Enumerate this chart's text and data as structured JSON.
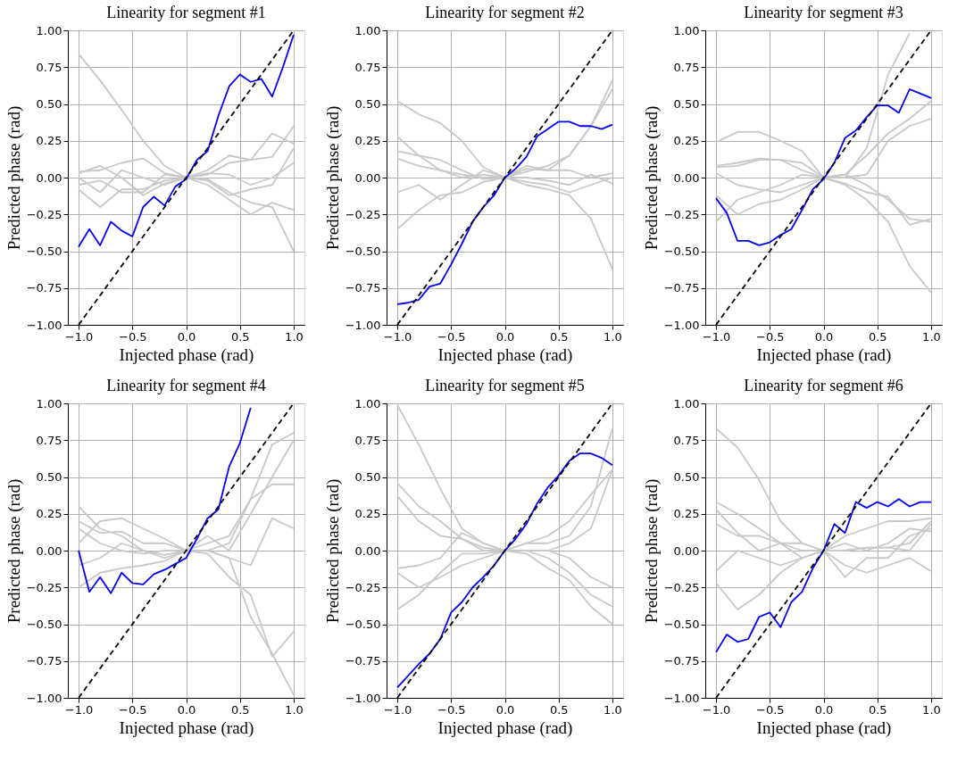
{
  "chart_data": [
    {
      "type": "line",
      "title": "Linearity for segment #1",
      "xlabel": "Injected phase (rad)",
      "ylabel": "Predicted phase (rad)",
      "grid": true,
      "xlim": [
        -1.1,
        1.1
      ],
      "ylim": [
        -1,
        1
      ],
      "xticks": [
        {
          "value": -1,
          "label": "−1.0"
        },
        {
          "value": -0.5,
          "label": "−0.5"
        },
        {
          "value": 0,
          "label": "0.0"
        },
        {
          "value": 0.5,
          "label": "0.5"
        },
        {
          "value": 1,
          "label": "1.0"
        }
      ],
      "yticks": [
        {
          "value": -1,
          "label": "−1.00"
        },
        {
          "value": -0.75,
          "label": "−0.75"
        },
        {
          "value": -0.5,
          "label": "−0.50"
        },
        {
          "value": -0.25,
          "label": "−0.25"
        },
        {
          "value": 0,
          "label": "0.00"
        },
        {
          "value": 0.25,
          "label": "0.25"
        },
        {
          "value": 0.5,
          "label": "0.50"
        },
        {
          "value": 0.75,
          "label": "0.75"
        },
        {
          "value": 1,
          "label": "1.00"
        }
      ],
      "x": [
        -1.0,
        -0.9,
        -0.8,
        -0.7,
        -0.6,
        -0.5,
        -0.4,
        -0.3,
        -0.2,
        -0.1,
        0.0,
        0.1,
        0.2,
        0.3,
        0.4,
        0.5,
        0.6,
        0.7,
        0.8,
        0.9,
        1.0
      ],
      "series": [
        {
          "color": "#c8c8c8",
          "x": [
            -1.0,
            -0.8,
            -0.6,
            -0.4,
            -0.2,
            0.0,
            0.2,
            0.4,
            0.6,
            0.8,
            1.0
          ],
          "values": [
            0.84,
            0.66,
            0.46,
            0.25,
            0.08,
            0.0,
            -0.05,
            -0.15,
            -0.25,
            -0.17,
            -0.22
          ]
        },
        {
          "color": "#c8c8c8",
          "x": [
            -1.0,
            -0.8,
            -0.6,
            -0.4,
            -0.2,
            0.0,
            0.2,
            0.4,
            0.6,
            0.8,
            1.0
          ],
          "values": [
            0.04,
            0.05,
            0.1,
            0.13,
            0.03,
            0.0,
            0.02,
            0.1,
            0.12,
            0.14,
            0.35
          ]
        },
        {
          "color": "#c8c8c8",
          "x": [
            -1.0,
            -0.8,
            -0.6,
            -0.4,
            -0.2,
            0.0,
            0.2,
            0.4,
            0.6,
            0.8,
            1.0
          ],
          "values": [
            -0.08,
            -0.2,
            -0.08,
            -0.08,
            -0.02,
            0.0,
            -0.01,
            -0.1,
            -0.17,
            -0.2,
            -0.5
          ]
        },
        {
          "color": "#c8c8c8",
          "x": [
            -1.0,
            -0.8,
            -0.6,
            -0.4,
            -0.2,
            0.0,
            0.2,
            0.4,
            0.6,
            0.8,
            1.0
          ],
          "values": [
            0.03,
            0.08,
            0.0,
            -0.12,
            -0.04,
            0.0,
            0.05,
            0.15,
            0.12,
            0.3,
            0.23
          ]
        },
        {
          "color": "#c8c8c8",
          "x": [
            -1.0,
            -0.8,
            -0.6,
            -0.4,
            -0.2,
            0.0,
            0.2,
            0.4,
            0.6,
            0.8,
            1.0
          ],
          "values": [
            -0.05,
            -0.02,
            -0.1,
            -0.1,
            0.02,
            0.0,
            0.03,
            0.02,
            -0.05,
            0.0,
            0.1
          ]
        },
        {
          "color": "#c8c8c8",
          "x": [
            -1.0,
            -0.8,
            -0.6,
            -0.4,
            -0.2,
            0.0,
            0.2,
            0.4,
            0.6,
            0.8,
            1.0
          ],
          "values": [
            0.0,
            -0.1,
            0.05,
            0.0,
            -0.05,
            0.0,
            -0.02,
            -0.12,
            -0.08,
            -0.05,
            0.2
          ]
        },
        {
          "color": "#0000ff",
          "values": [
            -0.47,
            -0.35,
            -0.46,
            -0.3,
            -0.36,
            -0.4,
            -0.2,
            -0.13,
            -0.19,
            -0.06,
            -0.01,
            0.12,
            0.18,
            0.42,
            0.62,
            0.7,
            0.65,
            0.67,
            0.55,
            0.75,
            0.97
          ]
        },
        {
          "color": "#000000",
          "line_style": "dashed",
          "x": [
            -1,
            1
          ],
          "values": [
            -1,
            1
          ]
        }
      ]
    },
    {
      "type": "line",
      "title": "Linearity for segment #2",
      "xlabel": "Injected phase (rad)",
      "ylabel": "Predicted phase (rad)",
      "grid": true,
      "xlim": [
        -1.1,
        1.1
      ],
      "ylim": [
        -1,
        1
      ],
      "xticks": [
        {
          "value": -1,
          "label": "−1.0"
        },
        {
          "value": -0.5,
          "label": "−0.5"
        },
        {
          "value": 0,
          "label": "0.0"
        },
        {
          "value": 0.5,
          "label": "0.5"
        },
        {
          "value": 1,
          "label": "1.0"
        }
      ],
      "yticks": [
        {
          "value": -1,
          "label": "−1.00"
        },
        {
          "value": -0.75,
          "label": "−0.75"
        },
        {
          "value": -0.5,
          "label": "−0.50"
        },
        {
          "value": -0.25,
          "label": "−0.25"
        },
        {
          "value": 0,
          "label": "0.00"
        },
        {
          "value": 0.25,
          "label": "0.25"
        },
        {
          "value": 0.5,
          "label": "0.50"
        },
        {
          "value": 0.75,
          "label": "0.75"
        },
        {
          "value": 1,
          "label": "1.00"
        }
      ],
      "x": [
        -1.0,
        -0.9,
        -0.8,
        -0.7,
        -0.6,
        -0.5,
        -0.4,
        -0.3,
        -0.2,
        -0.1,
        0.0,
        0.1,
        0.2,
        0.3,
        0.4,
        0.5,
        0.6,
        0.7,
        0.8,
        0.9,
        1.0
      ],
      "series": [
        {
          "color": "#c8c8c8",
          "x": [
            -1.0,
            -0.8,
            -0.6,
            -0.4,
            -0.2,
            0.0,
            0.2,
            0.4,
            0.6,
            0.8,
            1.0
          ],
          "values": [
            0.52,
            0.43,
            0.37,
            0.25,
            0.07,
            0.0,
            0.04,
            0.08,
            0.15,
            0.35,
            0.66
          ]
        },
        {
          "color": "#c8c8c8",
          "x": [
            -1.0,
            -0.8,
            -0.6,
            -0.4,
            -0.2,
            0.0,
            0.2,
            0.4,
            0.6,
            0.8,
            1.0
          ],
          "values": [
            0.28,
            0.15,
            0.05,
            0.0,
            0.02,
            0.0,
            -0.05,
            -0.08,
            -0.12,
            -0.28,
            -0.62
          ]
        },
        {
          "color": "#c8c8c8",
          "x": [
            -1.0,
            -0.8,
            -0.6,
            -0.4,
            -0.2,
            0.0,
            0.2,
            0.4,
            0.6,
            0.8,
            1.0
          ],
          "values": [
            0.18,
            0.15,
            0.12,
            0.05,
            -0.01,
            0.0,
            0.0,
            -0.02,
            -0.05,
            0.02,
            -0.04
          ]
        },
        {
          "color": "#c8c8c8",
          "x": [
            -1.0,
            -0.8,
            -0.6,
            -0.4,
            -0.2,
            0.0,
            0.2,
            0.4,
            0.6,
            0.8,
            1.0
          ],
          "values": [
            0.13,
            0.08,
            0.05,
            0.02,
            0.0,
            0.0,
            0.06,
            0.05,
            0.05,
            0.0,
            0.03
          ]
        },
        {
          "color": "#c8c8c8",
          "x": [
            -1.0,
            -0.8,
            -0.6,
            -0.4,
            -0.2,
            0.0,
            0.2,
            0.4,
            0.6,
            0.8,
            1.0
          ],
          "values": [
            -0.35,
            -0.22,
            -0.12,
            -0.1,
            -0.03,
            0.0,
            0.08,
            0.05,
            0.15,
            0.35,
            0.6
          ]
        },
        {
          "color": "#c8c8c8",
          "x": [
            -1.0,
            -0.8,
            -0.6,
            -0.4,
            -0.2,
            0.0,
            0.2,
            0.4,
            0.6,
            0.8,
            1.0
          ],
          "values": [
            -0.1,
            -0.05,
            -0.15,
            -0.05,
            0.05,
            0.0,
            -0.03,
            -0.05,
            -0.1,
            -0.05,
            0.0
          ]
        },
        {
          "color": "#0000ff",
          "values": [
            -0.86,
            -0.85,
            -0.83,
            -0.74,
            -0.72,
            -0.59,
            -0.45,
            -0.3,
            -0.2,
            -0.12,
            0.0,
            0.06,
            0.14,
            0.28,
            0.33,
            0.38,
            0.38,
            0.35,
            0.35,
            0.33,
            0.36
          ]
        },
        {
          "color": "#000000",
          "line_style": "dashed",
          "x": [
            -1,
            1
          ],
          "values": [
            -1,
            1
          ]
        }
      ]
    },
    {
      "type": "line",
      "title": "Linearity for segment #3",
      "xlabel": "Injected phase (rad)",
      "ylabel": "Predicted phase (rad)",
      "grid": true,
      "xlim": [
        -1.1,
        1.1
      ],
      "ylim": [
        -1,
        1
      ],
      "xticks": [
        {
          "value": -1,
          "label": "−1.0"
        },
        {
          "value": -0.5,
          "label": "−0.5"
        },
        {
          "value": 0,
          "label": "0.0"
        },
        {
          "value": 0.5,
          "label": "0.5"
        },
        {
          "value": 1,
          "label": "1.0"
        }
      ],
      "yticks": [
        {
          "value": -1,
          "label": "−1.00"
        },
        {
          "value": -0.75,
          "label": "−0.75"
        },
        {
          "value": -0.5,
          "label": "−0.50"
        },
        {
          "value": -0.25,
          "label": "−0.25"
        },
        {
          "value": 0,
          "label": "0.00"
        },
        {
          "value": 0.25,
          "label": "0.25"
        },
        {
          "value": 0.5,
          "label": "0.50"
        },
        {
          "value": 0.75,
          "label": "0.75"
        },
        {
          "value": 1,
          "label": "1.00"
        }
      ],
      "x": [
        -1.0,
        -0.9,
        -0.8,
        -0.7,
        -0.6,
        -0.5,
        -0.4,
        -0.3,
        -0.2,
        -0.1,
        0.0,
        0.1,
        0.2,
        0.3,
        0.4,
        0.5,
        0.6,
        0.7,
        0.8,
        0.9,
        1.0
      ],
      "series": [
        {
          "color": "#c8c8c8",
          "x": [
            -1.0,
            -0.8,
            -0.6,
            -0.4,
            -0.2,
            0.0,
            0.2,
            0.4,
            0.6,
            0.8,
            1.0
          ],
          "values": [
            0.24,
            0.31,
            0.31,
            0.25,
            0.18,
            0.0,
            -0.05,
            -0.15,
            -0.3,
            -0.6,
            -0.78
          ]
        },
        {
          "color": "#c8c8c8",
          "x": [
            -1.0,
            -0.8,
            -0.6,
            -0.4,
            -0.2,
            0.0,
            0.2,
            0.4,
            0.6,
            0.8,
            1.0
          ],
          "values": [
            0.08,
            0.1,
            0.13,
            0.12,
            0.1,
            0.0,
            -0.04,
            -0.1,
            -0.13,
            -0.32,
            -0.28
          ]
        },
        {
          "color": "#c8c8c8",
          "x": [
            -1.0,
            -0.8,
            -0.6,
            -0.4,
            -0.2,
            0.0,
            0.2,
            0.4,
            0.6,
            0.8,
            1.0
          ],
          "values": [
            0.07,
            0.08,
            0.12,
            0.12,
            0.05,
            0.0,
            0.02,
            -0.05,
            -0.15,
            -0.28,
            -0.3
          ]
        },
        {
          "color": "#c8c8c8",
          "x": [
            -1.0,
            -0.8,
            -0.6,
            -0.4,
            -0.2,
            0.0,
            0.2,
            0.4,
            0.6,
            0.8
          ],
          "values": [
            0.03,
            -0.05,
            -0.08,
            -0.1,
            -0.05,
            0.0,
            0.0,
            0.2,
            0.7,
            0.98
          ]
        },
        {
          "color": "#c8c8c8",
          "x": [
            -1.0,
            -0.8,
            -0.6,
            -0.4,
            -0.2,
            0.0,
            0.2,
            0.4,
            0.6,
            0.8,
            1.0
          ],
          "values": [
            -0.3,
            -0.15,
            -0.1,
            -0.05,
            0.02,
            0.0,
            0.02,
            0.15,
            0.3,
            0.4,
            0.52
          ]
        },
        {
          "color": "#c8c8c8",
          "x": [
            -1.0,
            -0.8,
            -0.6,
            -0.4,
            -0.2,
            0.0,
            0.2,
            0.4,
            0.6,
            0.8,
            1.0
          ],
          "values": [
            -0.12,
            -0.25,
            -0.18,
            -0.15,
            -0.08,
            0.0,
            0.0,
            0.02,
            0.25,
            0.35,
            0.4
          ]
        },
        {
          "color": "#0000ff",
          "values": [
            -0.14,
            -0.24,
            -0.43,
            -0.43,
            -0.46,
            -0.44,
            -0.39,
            -0.35,
            -0.22,
            -0.08,
            -0.01,
            0.1,
            0.27,
            0.32,
            0.41,
            0.49,
            0.49,
            0.44,
            0.6,
            0.57,
            0.54
          ]
        },
        {
          "color": "#000000",
          "line_style": "dashed",
          "x": [
            -1,
            1
          ],
          "values": [
            -1,
            1
          ]
        }
      ]
    },
    {
      "type": "line",
      "title": "Linearity for segment #4",
      "xlabel": "Injected phase (rad)",
      "ylabel": "Predicted phase (rad)",
      "grid": true,
      "xlim": [
        -1.1,
        1.1
      ],
      "ylim": [
        -1,
        1
      ],
      "xticks": [
        {
          "value": -1,
          "label": "−1.0"
        },
        {
          "value": -0.5,
          "label": "−0.5"
        },
        {
          "value": 0,
          "label": "0.0"
        },
        {
          "value": 0.5,
          "label": "0.5"
        },
        {
          "value": 1,
          "label": "1.0"
        }
      ],
      "yticks": [
        {
          "value": -1,
          "label": "−1.00"
        },
        {
          "value": -0.75,
          "label": "−0.75"
        },
        {
          "value": -0.5,
          "label": "−0.50"
        },
        {
          "value": -0.25,
          "label": "−0.25"
        },
        {
          "value": 0,
          "label": "0.00"
        },
        {
          "value": 0.25,
          "label": "0.25"
        },
        {
          "value": 0.5,
          "label": "0.50"
        },
        {
          "value": 0.75,
          "label": "0.75"
        },
        {
          "value": 1,
          "label": "1.00"
        }
      ],
      "series": [
        {
          "color": "#c8c8c8",
          "x": [
            -1.0,
            -0.8,
            -0.6,
            -0.4,
            -0.2,
            0.0,
            0.2,
            0.4,
            0.6,
            0.8,
            1.0
          ],
          "values": [
            0.3,
            0.15,
            0.1,
            0.0,
            -0.05,
            0.0,
            0.0,
            -0.05,
            -0.45,
            -0.7,
            -0.98
          ]
        },
        {
          "color": "#c8c8c8",
          "x": [
            -1.0,
            -0.8,
            -0.6,
            -0.4,
            -0.2,
            0.0,
            0.2,
            0.4,
            0.6,
            0.8,
            1.0
          ],
          "values": [
            0.2,
            0.12,
            0.13,
            0.05,
            0.05,
            0.0,
            -0.02,
            -0.18,
            -0.3,
            -0.72,
            -0.55
          ]
        },
        {
          "color": "#c8c8c8",
          "x": [
            -1.0,
            -0.8,
            -0.6,
            -0.4,
            -0.2,
            0.0,
            0.2,
            0.4,
            0.6,
            0.8,
            1.0
          ],
          "values": [
            0.05,
            0.2,
            0.22,
            0.15,
            0.08,
            0.0,
            0.0,
            0.05,
            0.35,
            0.72,
            0.8
          ]
        },
        {
          "color": "#c8c8c8",
          "x": [
            -1.0,
            -0.8,
            -0.6,
            -0.4,
            -0.2,
            0.0,
            0.2,
            0.4,
            0.6,
            0.8,
            1.0
          ],
          "values": [
            -0.1,
            -0.05,
            0.05,
            0.0,
            -0.03,
            0.0,
            0.05,
            0.1,
            0.35,
            0.45,
            0.45
          ]
        },
        {
          "color": "#c8c8c8",
          "x": [
            -1.0,
            -0.8,
            -0.6,
            -0.4,
            -0.2,
            0.0,
            0.2,
            0.4,
            0.6,
            0.8,
            1.0
          ],
          "values": [
            -0.25,
            -0.15,
            -0.12,
            -0.1,
            -0.07,
            0.0,
            0.0,
            -0.05,
            -0.1,
            0.22,
            0.15
          ]
        },
        {
          "color": "#c8c8c8",
          "x": [
            -1.0,
            -0.8,
            -0.6,
            -0.4,
            -0.2,
            0.0,
            0.2,
            0.4,
            0.6,
            0.8,
            1.0
          ],
          "values": [
            0.15,
            0.05,
            0.0,
            -0.02,
            0.0,
            0.0,
            0.1,
            0.0,
            0.25,
            0.5,
            0.75
          ]
        },
        {
          "color": "#0000ff",
          "x": [
            -1.0,
            -0.9,
            -0.8,
            -0.7,
            -0.6,
            -0.5,
            -0.4,
            -0.3,
            -0.2,
            -0.1,
            0.0,
            0.1,
            0.2,
            0.3,
            0.4,
            0.5,
            0.6
          ],
          "values": [
            0.0,
            -0.28,
            -0.18,
            -0.29,
            -0.15,
            -0.22,
            -0.23,
            -0.16,
            -0.13,
            -0.09,
            -0.05,
            0.08,
            0.22,
            0.28,
            0.57,
            0.73,
            0.97
          ]
        },
        {
          "color": "#000000",
          "line_style": "dashed",
          "x": [
            -1,
            1
          ],
          "values": [
            -1,
            1
          ]
        }
      ]
    },
    {
      "type": "line",
      "title": "Linearity for segment #5",
      "xlabel": "Injected phase (rad)",
      "ylabel": "Predicted phase (rad)",
      "grid": true,
      "xlim": [
        -1.1,
        1.1
      ],
      "ylim": [
        -1,
        1
      ],
      "xticks": [
        {
          "value": -1,
          "label": "−1.0"
        },
        {
          "value": -0.5,
          "label": "−0.5"
        },
        {
          "value": 0,
          "label": "0.0"
        },
        {
          "value": 0.5,
          "label": "0.5"
        },
        {
          "value": 1,
          "label": "1.0"
        }
      ],
      "yticks": [
        {
          "value": -1,
          "label": "−1.00"
        },
        {
          "value": -0.75,
          "label": "−0.75"
        },
        {
          "value": -0.5,
          "label": "−0.50"
        },
        {
          "value": -0.25,
          "label": "−0.25"
        },
        {
          "value": 0,
          "label": "0.00"
        },
        {
          "value": 0.25,
          "label": "0.25"
        },
        {
          "value": 0.5,
          "label": "0.50"
        },
        {
          "value": 0.75,
          "label": "0.75"
        },
        {
          "value": 1,
          "label": "1.00"
        }
      ],
      "x": [
        -1.0,
        -0.9,
        -0.8,
        -0.7,
        -0.6,
        -0.5,
        -0.4,
        -0.3,
        -0.2,
        -0.1,
        0.0,
        0.1,
        0.2,
        0.3,
        0.4,
        0.5,
        0.6,
        0.7,
        0.8,
        0.9,
        1.0
      ],
      "series": [
        {
          "color": "#c8c8c8",
          "x": [
            -1.0,
            -0.8,
            -0.6,
            -0.4,
            -0.2,
            0.0,
            0.2,
            0.4,
            0.6,
            0.8,
            1.0
          ],
          "values": [
            0.99,
            0.72,
            0.42,
            0.15,
            0.05,
            0.0,
            0.0,
            -0.05,
            -0.15,
            -0.3,
            -0.38
          ]
        },
        {
          "color": "#c8c8c8",
          "x": [
            -1.0,
            -0.8,
            -0.6,
            -0.4,
            -0.2,
            0.0,
            0.2,
            0.4,
            0.6,
            0.8,
            1.0
          ],
          "values": [
            0.46,
            0.3,
            0.2,
            0.08,
            0.02,
            0.0,
            -0.02,
            -0.12,
            -0.2,
            -0.38,
            -0.5
          ]
        },
        {
          "color": "#c8c8c8",
          "x": [
            -1.0,
            -0.8,
            -0.6,
            -0.4,
            -0.2,
            0.0,
            0.2,
            0.4,
            0.6,
            0.8,
            1.0
          ],
          "values": [
            0.37,
            0.2,
            0.1,
            0.08,
            0.0,
            0.0,
            0.0,
            0.0,
            -0.05,
            -0.18,
            -0.25
          ]
        },
        {
          "color": "#c8c8c8",
          "x": [
            -1.0,
            -0.8,
            -0.6,
            -0.4,
            -0.2,
            0.0,
            0.2,
            0.4,
            0.6,
            0.8,
            1.0
          ],
          "values": [
            -0.12,
            -0.1,
            -0.05,
            0.12,
            0.05,
            0.0,
            0.05,
            0.1,
            0.2,
            0.38,
            0.55
          ]
        },
        {
          "color": "#c8c8c8",
          "x": [
            -1.0,
            -0.8,
            -0.6,
            -0.4,
            -0.2,
            0.0,
            0.2,
            0.4,
            0.6,
            0.8,
            1.0
          ],
          "values": [
            -0.15,
            -0.25,
            -0.18,
            -0.1,
            -0.05,
            0.0,
            0.05,
            0.05,
            0.1,
            0.3,
            0.83
          ]
        },
        {
          "color": "#c8c8c8",
          "x": [
            -1.0,
            -0.8,
            -0.6,
            -0.4,
            -0.2,
            0.0,
            0.2,
            0.4,
            0.6,
            0.8,
            1.0
          ],
          "values": [
            -0.4,
            -0.3,
            -0.15,
            -0.02,
            -0.02,
            0.0,
            0.0,
            0.0,
            0.05,
            0.15,
            0.55
          ]
        },
        {
          "color": "#0000ff",
          "values": [
            -0.93,
            -0.85,
            -0.77,
            -0.7,
            -0.6,
            -0.42,
            -0.35,
            -0.25,
            -0.18,
            -0.1,
            0.0,
            0.08,
            0.18,
            0.32,
            0.43,
            0.51,
            0.61,
            0.66,
            0.66,
            0.63,
            0.58
          ]
        },
        {
          "color": "#000000",
          "line_style": "dashed",
          "x": [
            -1,
            1
          ],
          "values": [
            -1,
            1
          ]
        }
      ]
    },
    {
      "type": "line",
      "title": "Linearity for segment #6",
      "xlabel": "Injected phase (rad)",
      "ylabel": "Predicted phase (rad)",
      "grid": true,
      "xlim": [
        -1.1,
        1.1
      ],
      "ylim": [
        -1,
        1
      ],
      "xticks": [
        {
          "value": -1,
          "label": "−1.0"
        },
        {
          "value": -0.5,
          "label": "−0.5"
        },
        {
          "value": 0,
          "label": "0.0"
        },
        {
          "value": 0.5,
          "label": "0.5"
        },
        {
          "value": 1,
          "label": "1.0"
        }
      ],
      "yticks": [
        {
          "value": -1,
          "label": "−1.00"
        },
        {
          "value": -0.75,
          "label": "−0.75"
        },
        {
          "value": -0.5,
          "label": "−0.50"
        },
        {
          "value": -0.25,
          "label": "−0.25"
        },
        {
          "value": 0,
          "label": "0.00"
        },
        {
          "value": 0.25,
          "label": "0.25"
        },
        {
          "value": 0.5,
          "label": "0.50"
        },
        {
          "value": 0.75,
          "label": "0.75"
        },
        {
          "value": 1,
          "label": "1.00"
        }
      ],
      "x": [
        -1.0,
        -0.9,
        -0.8,
        -0.7,
        -0.6,
        -0.5,
        -0.4,
        -0.3,
        -0.2,
        -0.1,
        0.0,
        0.1,
        0.2,
        0.3,
        0.4,
        0.5,
        0.6,
        0.7,
        0.8,
        0.9,
        1.0
      ],
      "series": [
        {
          "color": "#c8c8c8",
          "x": [
            -1.0,
            -0.8,
            -0.6,
            -0.4,
            -0.2,
            0.0,
            0.2,
            0.4,
            0.6,
            0.8,
            1.0
          ],
          "values": [
            0.83,
            0.7,
            0.48,
            0.2,
            0.05,
            0.0,
            0.0,
            0.02,
            0.02,
            0.05,
            0.2
          ]
        },
        {
          "color": "#c8c8c8",
          "x": [
            -1.0,
            -0.8,
            -0.6,
            -0.4,
            -0.2,
            0.0,
            0.2,
            0.4,
            0.6,
            0.8,
            1.0
          ],
          "values": [
            0.33,
            0.25,
            0.15,
            0.05,
            0.05,
            0.0,
            0.1,
            0.15,
            0.2,
            0.2,
            0.22
          ]
        },
        {
          "color": "#c8c8c8",
          "x": [
            -1.0,
            -0.8,
            -0.6,
            -0.4,
            -0.2,
            0.0,
            0.2,
            0.4,
            0.6,
            0.8,
            1.0
          ],
          "values": [
            0.18,
            0.1,
            0.1,
            0.05,
            -0.05,
            0.0,
            0.05,
            0.0,
            0.05,
            0.15,
            0.13
          ]
        },
        {
          "color": "#c8c8c8",
          "x": [
            -1.0,
            -0.8,
            -0.6,
            -0.4,
            -0.2,
            0.0,
            0.2,
            0.4,
            0.6,
            0.8,
            1.0
          ],
          "values": [
            -0.14,
            0.0,
            -0.05,
            -0.1,
            -0.05,
            0.0,
            -0.1,
            -0.15,
            -0.1,
            -0.05,
            -0.14
          ]
        },
        {
          "color": "#c8c8c8",
          "x": [
            -1.0,
            -0.8,
            -0.6,
            -0.4,
            -0.2,
            0.0,
            0.2,
            0.4,
            0.6,
            0.8,
            1.0
          ],
          "values": [
            -0.22,
            -0.4,
            -0.3,
            -0.15,
            -0.05,
            0.0,
            0.0,
            0.02,
            0.02,
            0.0,
            0.18
          ]
        },
        {
          "color": "#c8c8c8",
          "x": [
            -1.0,
            -0.8,
            -0.6,
            -0.4,
            -0.2,
            0.0,
            0.2,
            0.4,
            0.6,
            0.8,
            1.0
          ],
          "values": [
            0.28,
            0.12,
            0.0,
            0.05,
            0.0,
            0.0,
            -0.18,
            -0.05,
            -0.05,
            0.1,
            0.15
          ]
        },
        {
          "color": "#0000ff",
          "values": [
            -0.69,
            -0.57,
            -0.62,
            -0.6,
            -0.45,
            -0.42,
            -0.52,
            -0.35,
            -0.28,
            -0.12,
            0.0,
            0.18,
            0.12,
            0.33,
            0.29,
            0.33,
            0.3,
            0.35,
            0.3,
            0.33,
            0.33
          ]
        },
        {
          "color": "#000000",
          "line_style": "dashed",
          "x": [
            -1,
            1
          ],
          "values": [
            -1,
            1
          ]
        }
      ]
    }
  ]
}
